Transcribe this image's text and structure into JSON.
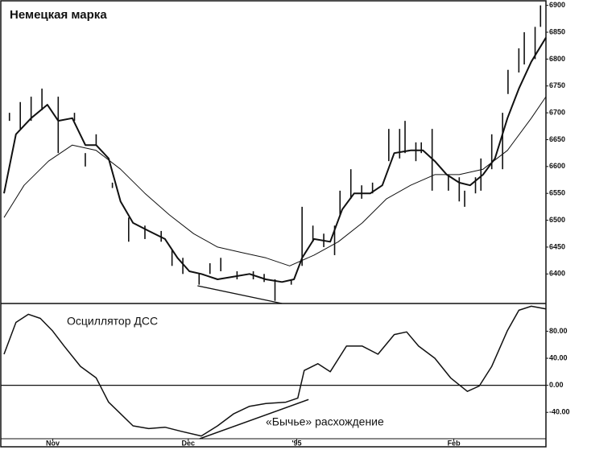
{
  "chart_data": [
    {
      "type": "range",
      "title": "Немецкая марка",
      "xlim": [
        0,
        100
      ],
      "ylim": [
        6345,
        6910
      ],
      "yticks": [
        6400,
        6450,
        6500,
        6550,
        6600,
        6650,
        6700,
        6750,
        6800,
        6850,
        6900
      ],
      "color": "#111111",
      "bars": {
        "x": [
          1,
          3,
          5,
          7,
          10,
          13,
          15,
          17,
          20,
          23,
          26,
          29,
          31,
          33,
          36,
          38,
          40,
          43,
          46,
          48,
          50,
          53,
          55,
          57,
          59,
          61,
          62,
          64,
          66,
          68,
          71,
          73,
          74,
          76,
          77,
          79,
          82,
          84,
          85,
          87,
          88,
          90,
          92,
          93,
          95,
          96,
          98,
          99
        ],
        "high": [
          6700,
          6720,
          6730,
          6745,
          6730,
          6700,
          6625,
          6660,
          6570,
          6505,
          6490,
          6480,
          6445,
          6430,
          6400,
          6420,
          6430,
          6405,
          6405,
          6400,
          6390,
          6390,
          6525,
          6490,
          6475,
          6490,
          6555,
          6595,
          6565,
          6570,
          6670,
          6670,
          6685,
          6645,
          6645,
          6670,
          6585,
          6580,
          6555,
          6580,
          6615,
          6660,
          6700,
          6780,
          6820,
          6850,
          6860,
          6900
        ],
        "low": [
          6685,
          6670,
          6685,
          6705,
          6625,
          6685,
          6600,
          6640,
          6560,
          6460,
          6465,
          6460,
          6415,
          6400,
          6380,
          6400,
          6405,
          6390,
          6390,
          6385,
          6350,
          6380,
          6415,
          6460,
          6450,
          6435,
          6510,
          6540,
          6540,
          6550,
          6610,
          6615,
          6625,
          6610,
          6625,
          6555,
          6555,
          6535,
          6525,
          6550,
          6555,
          6595,
          6595,
          6735,
          6775,
          6790,
          6800,
          6860
        ]
      },
      "lines": [
        {
          "x": [
            0,
            2.2,
            5,
            8,
            10,
            12.6,
            15,
            17,
            19.3,
            21.5,
            23.8,
            26.7,
            29.7,
            32,
            34.2,
            36.4,
            39.4,
            42.4,
            45.3,
            48.3,
            51.3,
            53.5,
            55,
            57.2,
            60.2,
            62.4,
            64.6,
            67.6,
            69.8,
            72,
            75,
            77.3,
            79.5,
            81.7,
            84,
            86,
            88.4,
            90.6,
            92.9,
            95,
            97.3,
            100
          ],
          "values": [
            6550,
            6660,
            6690,
            6715,
            6685,
            6690,
            6640,
            6640,
            6615,
            6535,
            6495,
            6480,
            6465,
            6430,
            6405,
            6400,
            6390,
            6395,
            6400,
            6390,
            6385,
            6390,
            6430,
            6465,
            6460,
            6520,
            6550,
            6550,
            6565,
            6625,
            6630,
            6630,
            6610,
            6585,
            6570,
            6565,
            6585,
            6615,
            6690,
            6745,
            6795,
            6840
          ],
          "width": 2
        },
        {
          "x": [
            0,
            3.7,
            8.2,
            12.6,
            17,
            21.5,
            26,
            30.5,
            35,
            39.4,
            43.8,
            48.3,
            52.7,
            57.2,
            61.7,
            66.1,
            70.6,
            75,
            79.5,
            84,
            88.4,
            92.9,
            97.3,
            100
          ],
          "values": [
            6505,
            6565,
            6610,
            6640,
            6630,
            6595,
            6550,
            6510,
            6475,
            6450,
            6440,
            6430,
            6415,
            6435,
            6460,
            6495,
            6540,
            6565,
            6585,
            6585,
            6595,
            6630,
            6690,
            6730
          ],
          "width": 1
        },
        {
          "x": [
            35.7,
            51.3
          ],
          "values": [
            6378,
            6345
          ],
          "width": 1.3
        }
      ]
    },
    {
      "type": "line",
      "annotations": [
        "Осциллятор ДСС",
        "«Бычье» расхождение"
      ],
      "xlim": [
        0,
        100
      ],
      "ylim": [
        -79,
        121
      ],
      "yticks": [
        {
          "value": 80,
          "label": "80.00"
        },
        {
          "value": 40,
          "label": "40.00"
        },
        {
          "value": 0,
          "label": "0.00"
        },
        {
          "value": -40,
          "label": "-40.00"
        }
      ],
      "xticks": [
        {
          "value": 9,
          "label": "Nov"
        },
        {
          "value": 34,
          "label": "Dec"
        },
        {
          "value": 54,
          "label": "'95"
        },
        {
          "value": 83,
          "label": "Feb"
        }
      ],
      "zero_line": true,
      "color": "#111111",
      "lines": [
        {
          "x": [
            0,
            2.2,
            4.5,
            6.7,
            8.9,
            11.1,
            14.1,
            17,
            19.3,
            21.5,
            23.8,
            26.7,
            29.7,
            32.7,
            36.4,
            39.4,
            42.4,
            45.3,
            48.3,
            52,
            54.2,
            55.4,
            57.9,
            60.2,
            63.2,
            66.1,
            69,
            72,
            74.3,
            76.5,
            79.5,
            82.4,
            85.5,
            87.7,
            90,
            92.9,
            95,
            97.3,
            100
          ],
          "values": [
            46,
            93,
            105,
            99,
            81,
            58,
            28,
            11,
            -25,
            -42,
            -60,
            -64,
            -62,
            -68,
            -75,
            -60,
            -42,
            -31,
            -27,
            -25,
            -19,
            22,
            32,
            20,
            58,
            58,
            46,
            75,
            79,
            58,
            40,
            11,
            -9,
            -1,
            28,
            81,
            111,
            117,
            113
          ],
          "width": 1.5
        },
        {
          "x": [
            36.1,
            56.2
          ],
          "values": [
            -79,
            -21
          ],
          "width": 1.5
        }
      ]
    }
  ]
}
